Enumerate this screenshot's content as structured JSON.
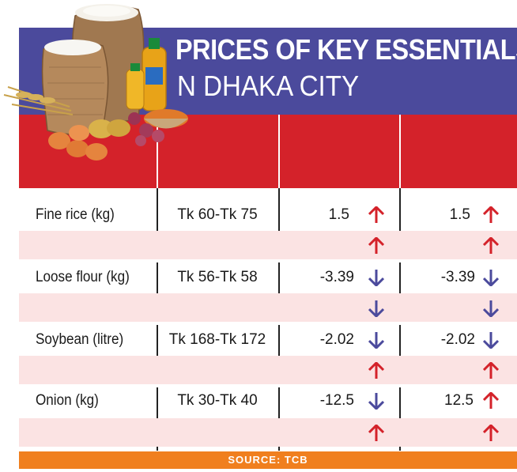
{
  "title": {
    "main": "PRICES OF KEY ESSENTIALS",
    "sub": "N DHAKA CITY"
  },
  "header": {
    "columns": [
      "",
      "",
      "",
      ""
    ]
  },
  "rows": [
    {
      "item": "Fine rice (kg)",
      "price": "Tk 60-Tk 75",
      "change1": "1.5",
      "dir1": "up",
      "change2": "1.5",
      "dir2": "up",
      "sub_dir1": "up",
      "sub_dir2": "up"
    },
    {
      "item": "Loose flour (kg)",
      "price": "Tk 56-Tk 58",
      "change1": "-3.39",
      "dir1": "down",
      "change2": "-3.39",
      "dir2": "down",
      "sub_dir1": "down",
      "sub_dir2": "down"
    },
    {
      "item": "Soybean (litre)",
      "price": "Tk 168-Tk 172",
      "change1": "-2.02",
      "dir1": "down",
      "change2": "-2.02",
      "dir2": "down",
      "sub_dir1": "up",
      "sub_dir2": "up"
    },
    {
      "item": "Onion (kg)",
      "price": "Tk 30-Tk 40",
      "change1": "-12.5",
      "dir1": "down",
      "change2": "12.5",
      "dir2": "up",
      "sub_dir1": "up",
      "sub_dir2": "up"
    }
  ],
  "source": "SOURCE: TCB",
  "colors": {
    "title_band": "#4b4a9c",
    "header_band": "#d4222a",
    "stripe": "#fbe3e3",
    "up_arrow": "#d4222a",
    "down_arrow": "#4b4a9c",
    "source_bar": "#f07f1e"
  },
  "icons": {
    "up": "arrow-up-icon",
    "down": "arrow-down-icon",
    "illustration": "groceries-illustration"
  }
}
